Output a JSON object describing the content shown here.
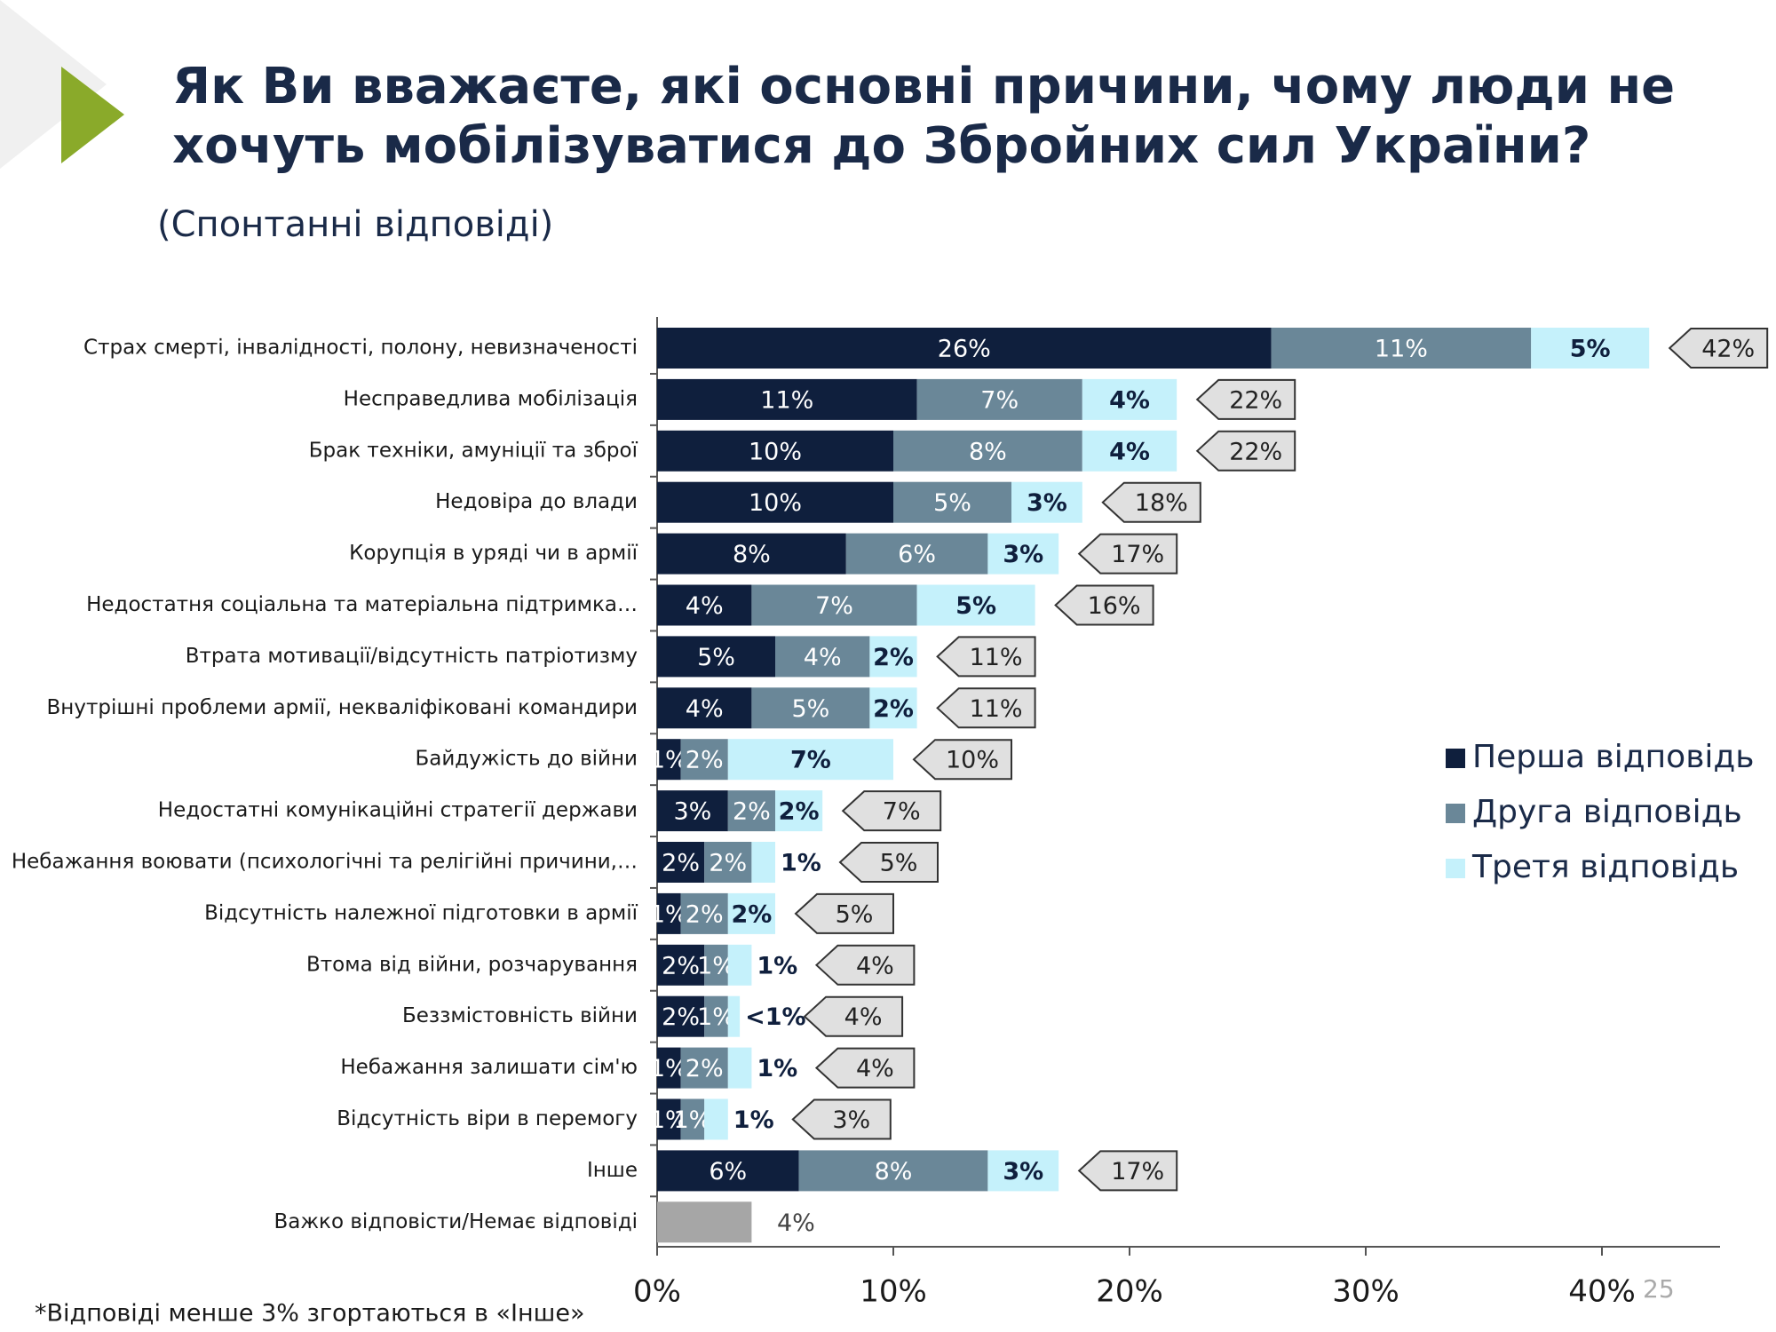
{
  "chart_data": {
    "type": "stacked_barh",
    "title": [
      "Як Ви вважаєте, які основні причини, чому люди не",
      "хочуть мобілізуватися до Збройних сил України?"
    ],
    "subtitle": "(Спонтанні відповіді)",
    "footnote": "*Відповіді менше 3% згортаються в «Інше»",
    "page_number": "25",
    "categories": [
      "Страх смерті, інвалідності, полону, невизначеності",
      "Несправедлива мобілізація",
      "Брак техніки, амуніції та зброї",
      "Недовіра до влади",
      "Корупція в уряді чи в армії",
      "Недостатня соціальна та матеріальна підтримка…",
      "Втрата мотивації/відсутність патріотизму",
      "Внутрішні проблеми армії, некваліфіковані командири",
      "Байдужість до війни",
      "Недостатні комунікаційні стратегії держави",
      "Небажання воювати (психологічні та релігійні причини,…",
      "Відсутність належної підготовки в армії",
      "Втома від війни, розчарування",
      "Беззмістовність війни",
      "Небажання залишати сім'ю",
      "Відсутність віри в перемогу",
      "Інше",
      "Важко відповісти/Немає відповіді"
    ],
    "series": [
      {
        "name": "Перша відповідь",
        "color": "#0f1f3d",
        "values": [
          26,
          11,
          10,
          10,
          8,
          4,
          5,
          4,
          1,
          3,
          2,
          1,
          2,
          2,
          1,
          1,
          6,
          null
        ],
        "value_labels": [
          "26%",
          "11%",
          "10%",
          "10%",
          "8%",
          "4%",
          "5%",
          "4%",
          "1%",
          "3%",
          "2%",
          "1%",
          "2%",
          "2%",
          "1%",
          "1%",
          "6%",
          null
        ]
      },
      {
        "name": "Друга відповідь",
        "color": "#6a8798",
        "values": [
          11,
          7,
          8,
          5,
          6,
          7,
          4,
          5,
          2,
          2,
          2,
          2,
          1,
          1,
          2,
          1,
          8,
          null
        ],
        "value_labels": [
          "11%",
          "7%",
          "8%",
          "5%",
          "6%",
          "7%",
          "4%",
          "5%",
          "2%",
          "2%",
          "2%",
          "2%",
          "1%",
          "1%",
          "2%",
          "1%",
          "8%",
          null
        ]
      },
      {
        "name": "Третя відповідь",
        "color": "#c5f1fb",
        "values": [
          5,
          4,
          4,
          3,
          3,
          5,
          2,
          2,
          7,
          2,
          1,
          2,
          1,
          0.5,
          1,
          1,
          3,
          null
        ],
        "value_labels": [
          "5%",
          "4%",
          "4%",
          "3%",
          "3%",
          "5%",
          "2%",
          "2%",
          "7%",
          "2%",
          "1%",
          "2%",
          "1%",
          "<1%",
          "1%",
          "1%",
          "3%",
          null
        ]
      }
    ],
    "gray_series": {
      "color": "#a6a6a6",
      "values": [
        null,
        null,
        null,
        null,
        null,
        null,
        null,
        null,
        null,
        null,
        null,
        null,
        null,
        null,
        null,
        null,
        null,
        4
      ],
      "value_labels": [
        null,
        null,
        null,
        null,
        null,
        null,
        null,
        null,
        null,
        null,
        null,
        null,
        null,
        null,
        null,
        null,
        null,
        "4%"
      ]
    },
    "totals": {
      "values": [
        42,
        22,
        22,
        18,
        17,
        16,
        11,
        11,
        10,
        7,
        5,
        5,
        4,
        4,
        4,
        3,
        17,
        null
      ],
      "value_labels": [
        "42%",
        "22%",
        "22%",
        "18%",
        "17%",
        "16%",
        "11%",
        "11%",
        "10%",
        "7%",
        "5%",
        "5%",
        "4%",
        "4%",
        "4%",
        "3%",
        "17%",
        null
      ]
    },
    "xlim": [
      0,
      45
    ],
    "xticks": [
      {
        "value": 0,
        "label": "0%"
      },
      {
        "value": 10,
        "label": "10%"
      },
      {
        "value": 20,
        "label": "20%"
      },
      {
        "value": 30,
        "label": "30%"
      },
      {
        "value": 40,
        "label": "40%"
      }
    ],
    "legend": "right"
  }
}
